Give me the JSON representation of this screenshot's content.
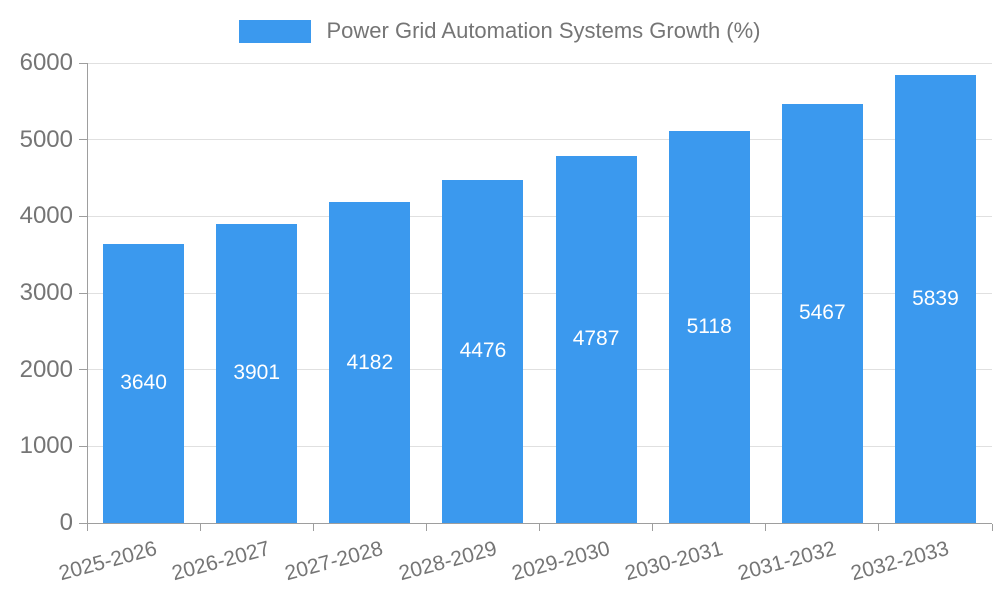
{
  "chart_data": {
    "type": "bar",
    "title": "Power Grid Automation Systems Growth (%)",
    "categories": [
      "2025-2026",
      "2026-2027",
      "2027-2028",
      "2028-2029",
      "2029-2030",
      "2030-2031",
      "2031-2032",
      "2032-2033"
    ],
    "values": [
      3640,
      3901,
      4182,
      4476,
      4787,
      5118,
      5467,
      5839
    ],
    "xlabel": "",
    "ylabel": "",
    "ylim": [
      0,
      6000
    ],
    "yticks": [
      0,
      1000,
      2000,
      3000,
      4000,
      5000,
      6000
    ],
    "grid": true,
    "legend_position": "top-center",
    "x_label_rotation_deg": -15,
    "colors": {
      "bar": "#3b99ee",
      "value_label": "#ffffff",
      "axis_text": "#757575",
      "gridline": "#e0e0e0",
      "axis_line": "#9e9e9e"
    }
  }
}
